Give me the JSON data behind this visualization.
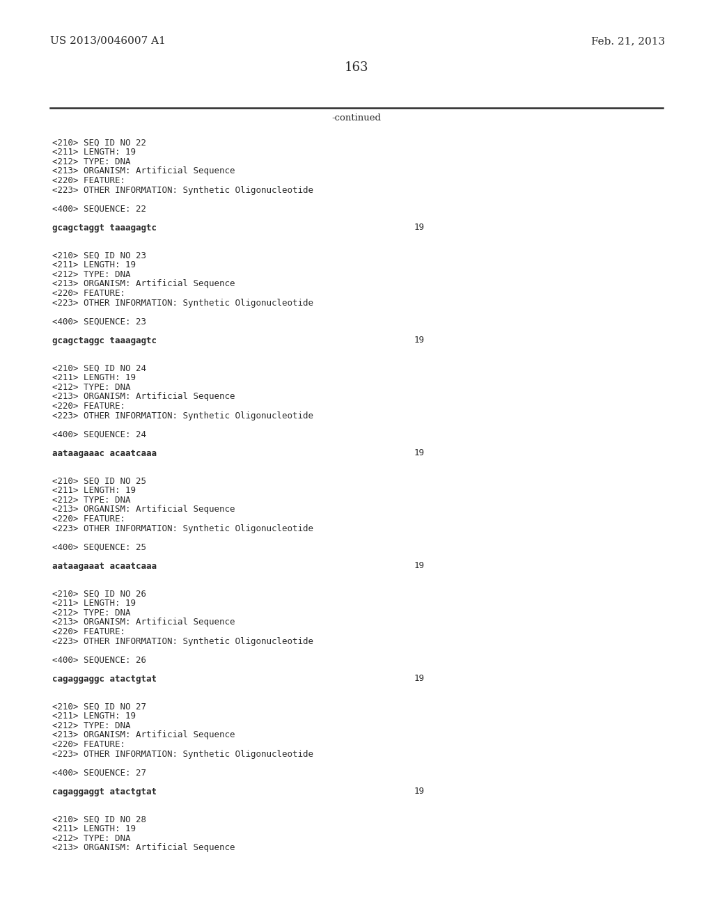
{
  "background_color": "#ffffff",
  "header_left": "US 2013/0046007 A1",
  "header_right": "Feb. 21, 2013",
  "page_number": "163",
  "continued_text": "-continued",
  "font_size_header": 11,
  "font_size_page": 13,
  "font_size_continued": 9.5,
  "font_size_mono": 9.0,
  "text_color": "#2a2a2a",
  "line_color": "#2a2a2a",
  "content_lines": [
    {
      "text": "<210> SEQ ID NO 22",
      "style": "mono"
    },
    {
      "text": "<211> LENGTH: 19",
      "style": "mono"
    },
    {
      "text": "<212> TYPE: DNA",
      "style": "mono"
    },
    {
      "text": "<213> ORGANISM: Artificial Sequence",
      "style": "mono"
    },
    {
      "text": "<220> FEATURE:",
      "style": "mono"
    },
    {
      "text": "<223> OTHER INFORMATION: Synthetic Oligonucleotide",
      "style": "mono"
    },
    {
      "text": "",
      "style": "blank"
    },
    {
      "text": "<400> SEQUENCE: 22",
      "style": "mono"
    },
    {
      "text": "",
      "style": "blank"
    },
    {
      "text": "gcagctaggt taaagagtc",
      "style": "mono_bold",
      "number": "19"
    },
    {
      "text": "",
      "style": "blank"
    },
    {
      "text": "",
      "style": "blank"
    },
    {
      "text": "<210> SEQ ID NO 23",
      "style": "mono"
    },
    {
      "text": "<211> LENGTH: 19",
      "style": "mono"
    },
    {
      "text": "<212> TYPE: DNA",
      "style": "mono"
    },
    {
      "text": "<213> ORGANISM: Artificial Sequence",
      "style": "mono"
    },
    {
      "text": "<220> FEATURE:",
      "style": "mono"
    },
    {
      "text": "<223> OTHER INFORMATION: Synthetic Oligonucleotide",
      "style": "mono"
    },
    {
      "text": "",
      "style": "blank"
    },
    {
      "text": "<400> SEQUENCE: 23",
      "style": "mono"
    },
    {
      "text": "",
      "style": "blank"
    },
    {
      "text": "gcagctaggc taaagagtc",
      "style": "mono_bold",
      "number": "19"
    },
    {
      "text": "",
      "style": "blank"
    },
    {
      "text": "",
      "style": "blank"
    },
    {
      "text": "<210> SEQ ID NO 24",
      "style": "mono"
    },
    {
      "text": "<211> LENGTH: 19",
      "style": "mono"
    },
    {
      "text": "<212> TYPE: DNA",
      "style": "mono"
    },
    {
      "text": "<213> ORGANISM: Artificial Sequence",
      "style": "mono"
    },
    {
      "text": "<220> FEATURE:",
      "style": "mono"
    },
    {
      "text": "<223> OTHER INFORMATION: Synthetic Oligonucleotide",
      "style": "mono"
    },
    {
      "text": "",
      "style": "blank"
    },
    {
      "text": "<400> SEQUENCE: 24",
      "style": "mono"
    },
    {
      "text": "",
      "style": "blank"
    },
    {
      "text": "aataagaaac acaatcaaa",
      "style": "mono_bold",
      "number": "19"
    },
    {
      "text": "",
      "style": "blank"
    },
    {
      "text": "",
      "style": "blank"
    },
    {
      "text": "<210> SEQ ID NO 25",
      "style": "mono"
    },
    {
      "text": "<211> LENGTH: 19",
      "style": "mono"
    },
    {
      "text": "<212> TYPE: DNA",
      "style": "mono"
    },
    {
      "text": "<213> ORGANISM: Artificial Sequence",
      "style": "mono"
    },
    {
      "text": "<220> FEATURE:",
      "style": "mono"
    },
    {
      "text": "<223> OTHER INFORMATION: Synthetic Oligonucleotide",
      "style": "mono"
    },
    {
      "text": "",
      "style": "blank"
    },
    {
      "text": "<400> SEQUENCE: 25",
      "style": "mono"
    },
    {
      "text": "",
      "style": "blank"
    },
    {
      "text": "aataagaaat acaatcaaa",
      "style": "mono_bold",
      "number": "19"
    },
    {
      "text": "",
      "style": "blank"
    },
    {
      "text": "",
      "style": "blank"
    },
    {
      "text": "<210> SEQ ID NO 26",
      "style": "mono"
    },
    {
      "text": "<211> LENGTH: 19",
      "style": "mono"
    },
    {
      "text": "<212> TYPE: DNA",
      "style": "mono"
    },
    {
      "text": "<213> ORGANISM: Artificial Sequence",
      "style": "mono"
    },
    {
      "text": "<220> FEATURE:",
      "style": "mono"
    },
    {
      "text": "<223> OTHER INFORMATION: Synthetic Oligonucleotide",
      "style": "mono"
    },
    {
      "text": "",
      "style": "blank"
    },
    {
      "text": "<400> SEQUENCE: 26",
      "style": "mono"
    },
    {
      "text": "",
      "style": "blank"
    },
    {
      "text": "cagaggaggc atactgtat",
      "style": "mono_bold",
      "number": "19"
    },
    {
      "text": "",
      "style": "blank"
    },
    {
      "text": "",
      "style": "blank"
    },
    {
      "text": "<210> SEQ ID NO 27",
      "style": "mono"
    },
    {
      "text": "<211> LENGTH: 19",
      "style": "mono"
    },
    {
      "text": "<212> TYPE: DNA",
      "style": "mono"
    },
    {
      "text": "<213> ORGANISM: Artificial Sequence",
      "style": "mono"
    },
    {
      "text": "<220> FEATURE:",
      "style": "mono"
    },
    {
      "text": "<223> OTHER INFORMATION: Synthetic Oligonucleotide",
      "style": "mono"
    },
    {
      "text": "",
      "style": "blank"
    },
    {
      "text": "<400> SEQUENCE: 27",
      "style": "mono"
    },
    {
      "text": "",
      "style": "blank"
    },
    {
      "text": "cagaggaggt atactgtat",
      "style": "mono_bold",
      "number": "19"
    },
    {
      "text": "",
      "style": "blank"
    },
    {
      "text": "",
      "style": "blank"
    },
    {
      "text": "<210> SEQ ID NO 28",
      "style": "mono"
    },
    {
      "text": "<211> LENGTH: 19",
      "style": "mono"
    },
    {
      "text": "<212> TYPE: DNA",
      "style": "mono"
    },
    {
      "text": "<213> ORGANISM: Artificial Sequence",
      "style": "mono"
    }
  ]
}
